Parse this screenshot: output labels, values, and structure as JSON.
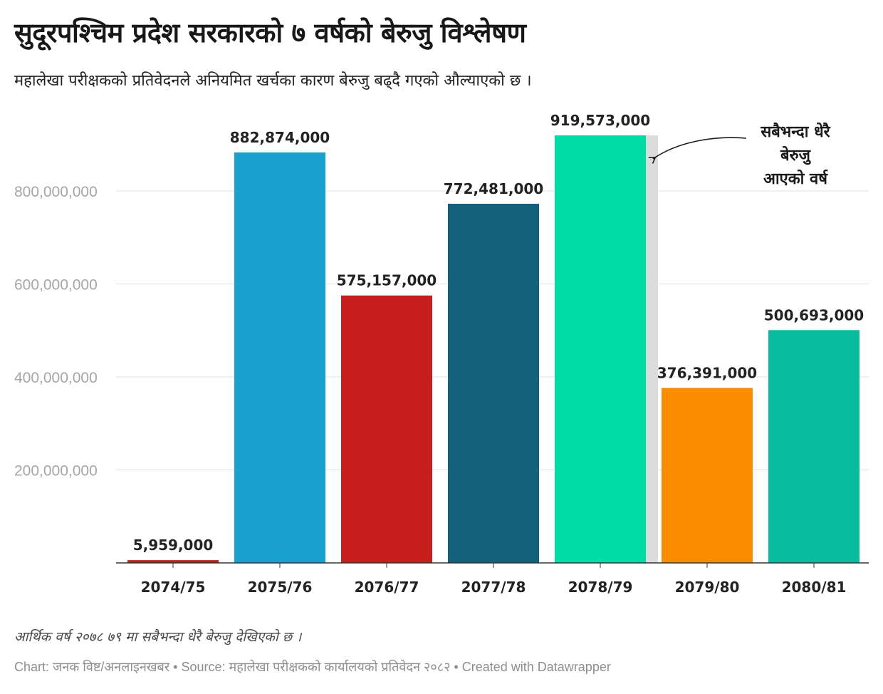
{
  "title": "सुदूरपश्चिम प्रदेश सरकारको ७ वर्षको बेरुजु विश्लेषण",
  "subtitle": "महालेखा परीक्षकको प्रतिवेदनले अनियमित खर्चका कारण बेरुजु बढ्दै गएको औल्याएको छ ।",
  "note": "आर्थिक वर्ष २०७८ ७९ मा सबैभन्दा धेरै बेरुजु देखिएको छ ।",
  "credits": "Chart: जनक विष्ट/अनलाइनखबर • Source: महालेखा परीक्षकको कार्यालयको प्रतिवेदन २०८२ • Created with Datawrapper",
  "chart_data": {
    "type": "bar",
    "title": "सुदूरपश्चिम प्रदेश सरकारको ७ वर्षको बेरुजु विश्लेषण",
    "xlabel": "",
    "ylabel": "",
    "ylim": [
      0,
      800000000
    ],
    "yticks": [
      200000000,
      400000000,
      600000000,
      800000000
    ],
    "ytick_labels": [
      "200,000,000",
      "400,000,000",
      "600,000,000",
      "800,000,000"
    ],
    "grid": true,
    "categories": [
      "2074/75",
      "2075/76",
      "2076/77",
      "2077/78",
      "2078/79",
      "2079/80",
      "2080/81"
    ],
    "values": [
      5959000,
      882874000,
      575157000,
      772481000,
      919573000,
      376391000,
      500693000
    ],
    "value_labels": [
      "5,959,000",
      "882,874,000",
      "575,157,000",
      "772,481,000",
      "919,573,000",
      "376,391,000",
      "500,693,000"
    ],
    "colors": [
      "#c71e1d",
      "#18a1cd",
      "#c71e1d",
      "#15607a",
      "#00dca6",
      "#fa8c00",
      "#09bb9f"
    ],
    "highlight_category": "2078/79",
    "highlight_color": "#dcdcdc",
    "annotation": {
      "target": "2078/79",
      "lines": [
        "सबैभन्दा धेरै",
        "बेरुजु",
        "आएको वर्ष"
      ]
    }
  }
}
